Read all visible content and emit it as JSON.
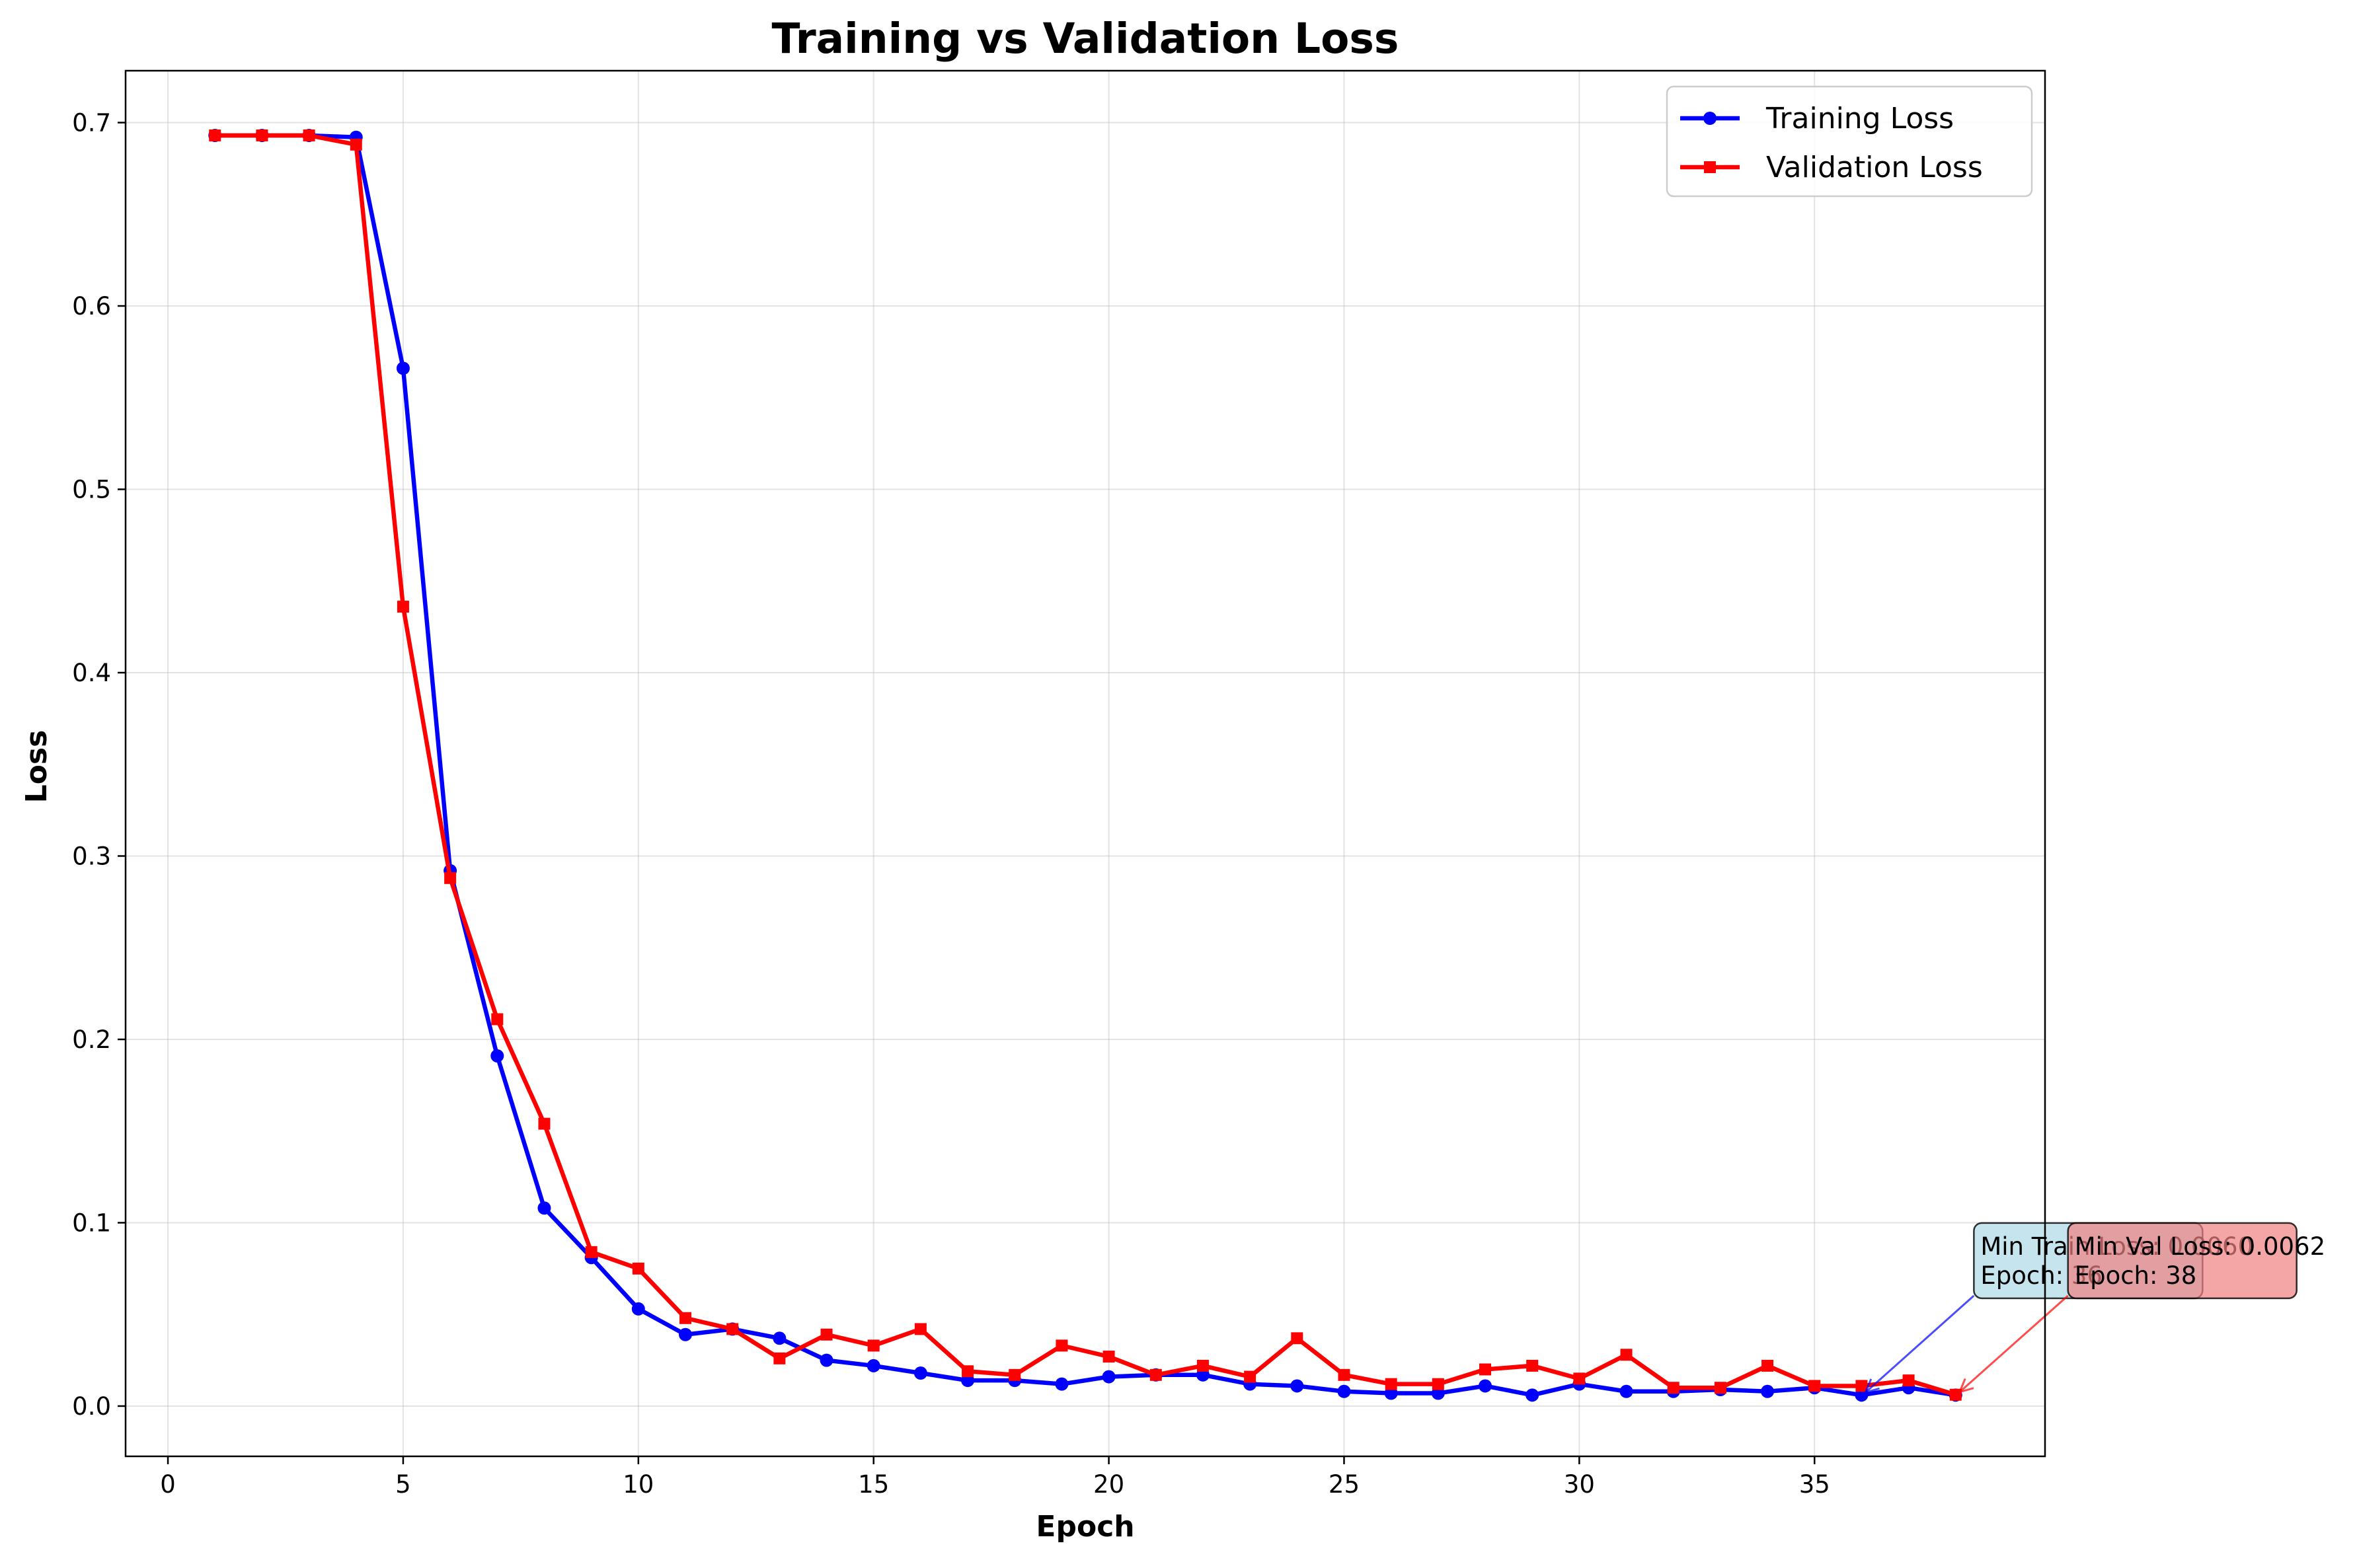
{
  "chart_data": {
    "type": "line",
    "title": "Training vs Validation Loss",
    "xlabel": "Epoch",
    "ylabel": "Loss",
    "xlim": [
      -0.9,
      39.9
    ],
    "ylim": [
      -0.0274,
      0.7283
    ],
    "xticks": [
      0,
      5,
      10,
      15,
      20,
      25,
      30,
      35
    ],
    "yticks": [
      0.0,
      0.1,
      0.2,
      0.3,
      0.4,
      0.5,
      0.6,
      0.7
    ],
    "xtick_labels": [
      "0",
      "5",
      "10",
      "15",
      "20",
      "25",
      "30",
      "35"
    ],
    "ytick_labels": [
      "0.0",
      "0.1",
      "0.2",
      "0.3",
      "0.4",
      "0.5",
      "0.6",
      "0.7"
    ],
    "grid": true,
    "legend_position": "top-right",
    "x": [
      1,
      2,
      3,
      4,
      5,
      6,
      7,
      8,
      9,
      10,
      11,
      12,
      13,
      14,
      15,
      16,
      17,
      18,
      19,
      20,
      21,
      22,
      23,
      24,
      25,
      26,
      27,
      28,
      29,
      30,
      31,
      32,
      33,
      34,
      35,
      36,
      37,
      38
    ],
    "series": [
      {
        "name": "Training Loss",
        "color": "#0000ff",
        "marker": "circle",
        "values": [
          0.693,
          0.693,
          0.693,
          0.692,
          0.566,
          0.292,
          0.191,
          0.108,
          0.081,
          0.053,
          0.039,
          0.042,
          0.037,
          0.025,
          0.022,
          0.018,
          0.014,
          0.014,
          0.012,
          0.016,
          0.017,
          0.017,
          0.012,
          0.011,
          0.008,
          0.007,
          0.007,
          0.011,
          0.006,
          0.012,
          0.008,
          0.008,
          0.009,
          0.008,
          0.01,
          0.006,
          0.01,
          0.006
        ]
      },
      {
        "name": "Validation Loss",
        "color": "#ff0000",
        "marker": "square",
        "values": [
          0.693,
          0.693,
          0.693,
          0.688,
          0.436,
          0.288,
          0.211,
          0.154,
          0.084,
          0.075,
          0.048,
          0.042,
          0.026,
          0.039,
          0.033,
          0.042,
          0.019,
          0.017,
          0.033,
          0.027,
          0.017,
          0.022,
          0.016,
          0.037,
          0.017,
          0.012,
          0.012,
          0.02,
          0.022,
          0.015,
          0.028,
          0.01,
          0.01,
          0.022,
          0.011,
          0.011,
          0.014,
          0.0062
        ]
      }
    ],
    "annotations": [
      {
        "name": "min-train",
        "lines": [
          "Min Train Loss: 0.0060",
          "Epoch: 36"
        ],
        "target_x": 36,
        "target_y": 0.006,
        "text_x": 38.5,
        "text_y": 0.066,
        "box_color": "#add8e6",
        "arrow_color": "#0000ff"
      },
      {
        "name": "min-val",
        "lines": [
          "Min Val Loss: 0.0062",
          "Epoch: 38"
        ],
        "target_x": 38,
        "target_y": 0.0062,
        "text_x": 40.5,
        "text_y": 0.066,
        "box_color": "#f08080",
        "arrow_color": "#ff0000"
      }
    ]
  }
}
